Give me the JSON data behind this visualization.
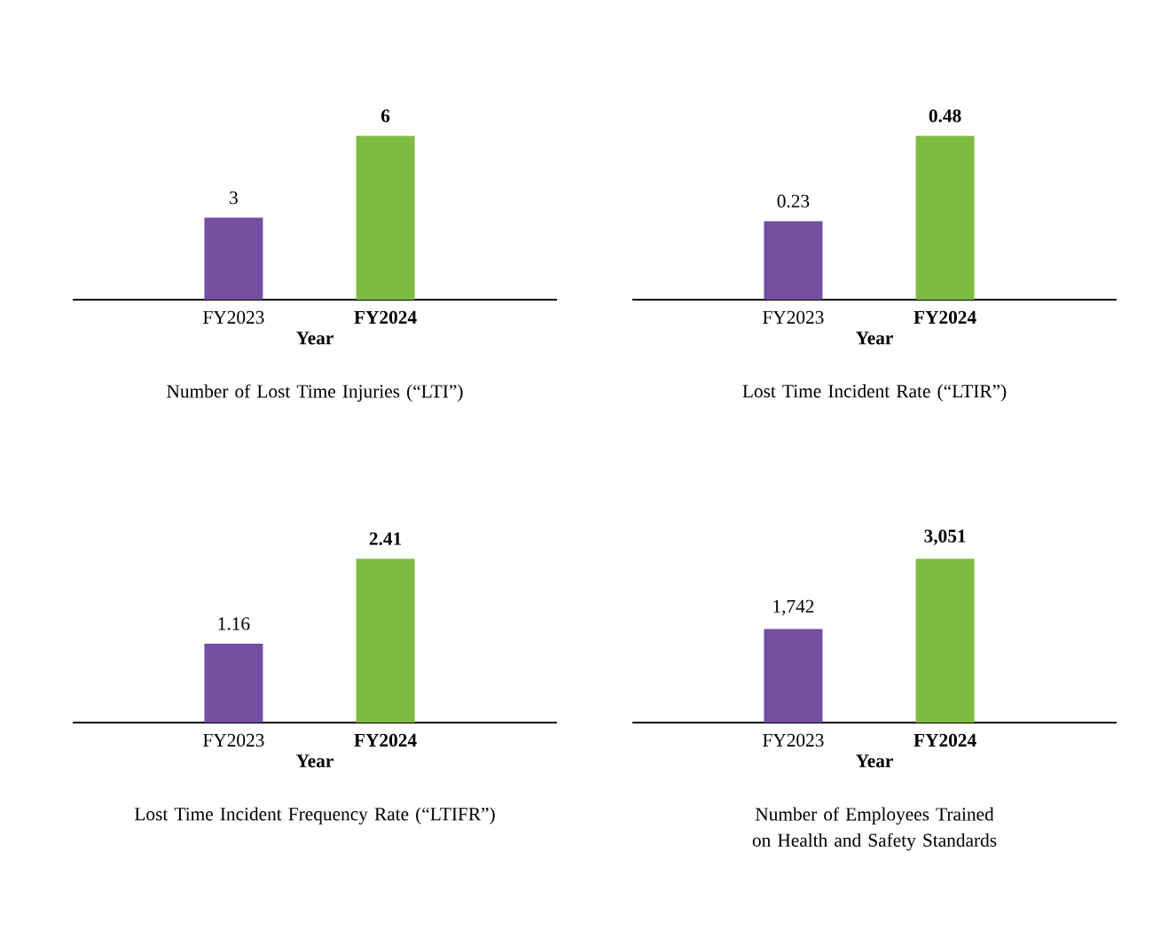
{
  "chart_data": [
    {
      "type": "bar",
      "title": "Number of Lost Time Injuries (“LTI”)",
      "xlabel": "Year",
      "categories": [
        "FY2023",
        "FY2024"
      ],
      "values": [
        3,
        6
      ],
      "colors": [
        "#744ea0",
        "#80bb41"
      ],
      "value_labels": [
        "3",
        "6"
      ]
    },
    {
      "type": "bar",
      "title": "Lost Time Incident Rate (“LTIR”)",
      "xlabel": "Year",
      "categories": [
        "FY2023",
        "FY2024"
      ],
      "values": [
        0.23,
        0.48
      ],
      "colors": [
        "#744ea0",
        "#80bb41"
      ],
      "value_labels": [
        "0.23",
        "0.48"
      ]
    },
    {
      "type": "bar",
      "title": "Lost Time Incident Frequency Rate (“LTIFR”)",
      "xlabel": "Year",
      "categories": [
        "FY2023",
        "FY2024"
      ],
      "values": [
        1.16,
        2.41
      ],
      "colors": [
        "#744ea0",
        "#80bb41"
      ],
      "value_labels": [
        "1.16",
        "2.41"
      ]
    },
    {
      "type": "bar",
      "title": "Number of Employees Trained on Health and Safety Standards",
      "xlabel": "Year",
      "categories": [
        "FY2023",
        "FY2024"
      ],
      "values": [
        1742,
        3051
      ],
      "colors": [
        "#744ea0",
        "#80bb41"
      ],
      "value_labels": [
        "1,742",
        "3,051"
      ]
    }
  ]
}
